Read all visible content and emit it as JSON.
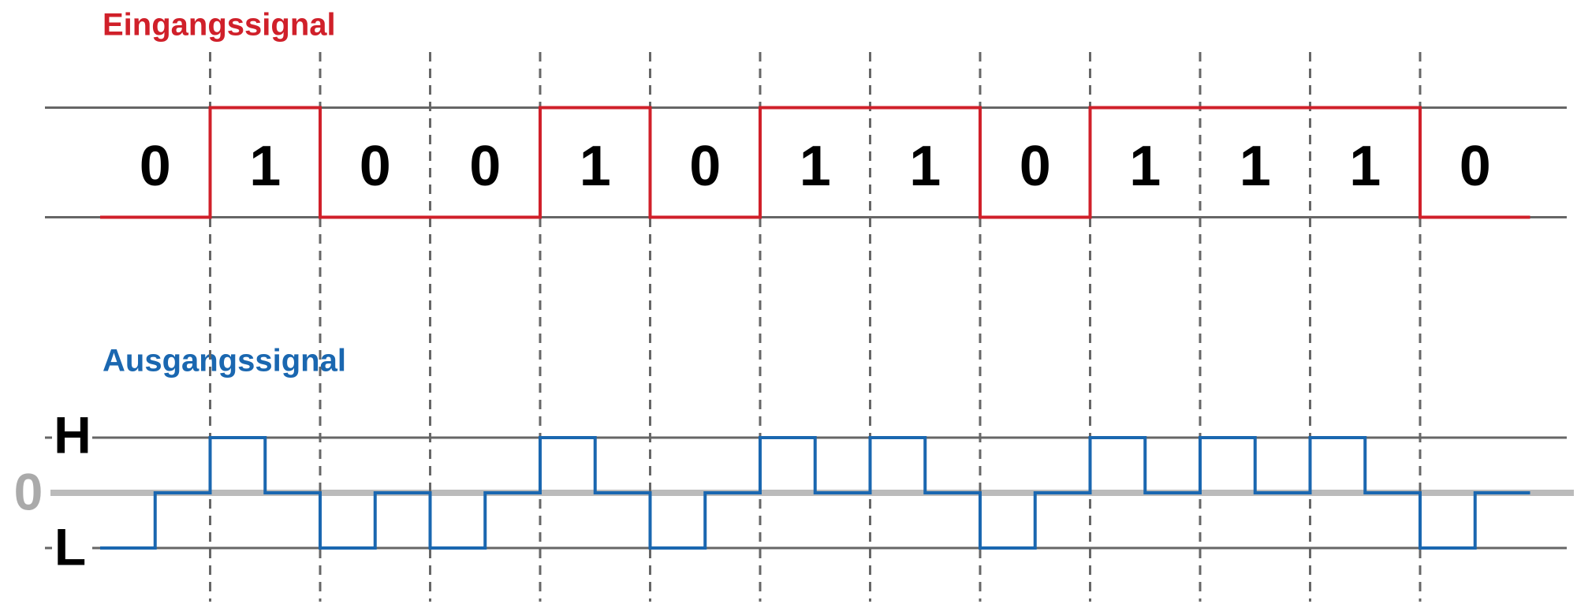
{
  "input": {
    "title": "Eingangssignal",
    "bits": [
      0,
      1,
      0,
      0,
      1,
      0,
      1,
      1,
      0,
      1,
      1,
      1,
      0
    ]
  },
  "output": {
    "title": "Ausgangssignal",
    "levels": {
      "high": "H",
      "zero": "0",
      "low": "L"
    }
  }
}
